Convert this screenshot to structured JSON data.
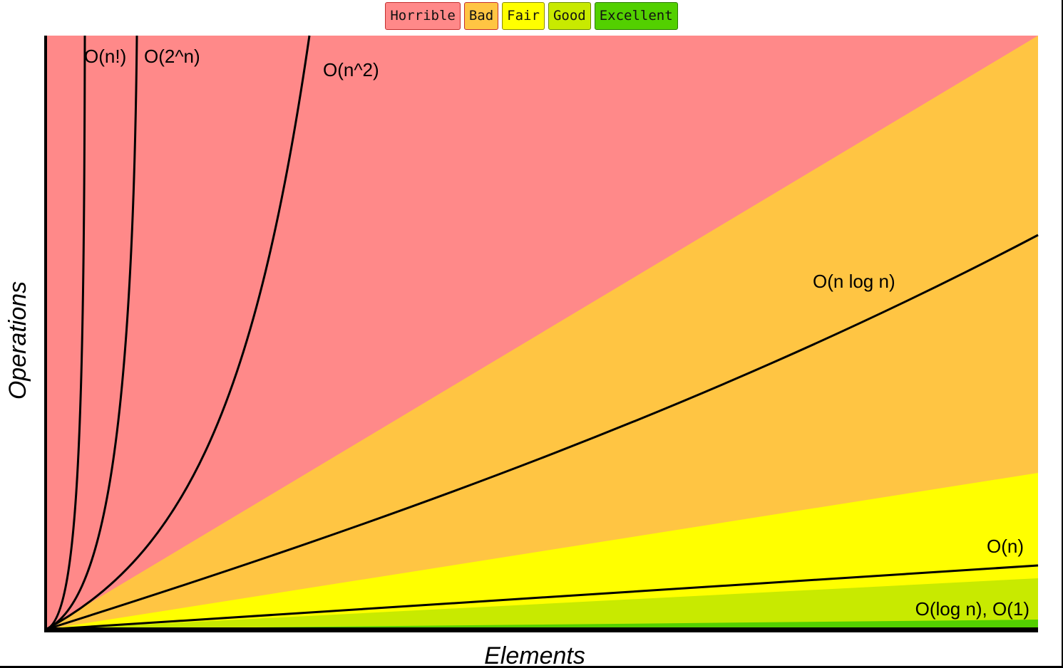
{
  "legend": {
    "items": [
      {
        "label": "Horrible",
        "color": "#ff8989",
        "border": "#c42e2e"
      },
      {
        "label": "Bad",
        "color": "#ffc543",
        "border": "#c42e2e"
      },
      {
        "label": "Fair",
        "color": "#ffff00",
        "border": "#8a8a00"
      },
      {
        "label": "Good",
        "color": "#c8ea00",
        "border": "#6a8a00"
      },
      {
        "label": "Excellent",
        "color": "#53d000",
        "border": "#2a7a00"
      }
    ]
  },
  "chart_data": {
    "type": "area",
    "xlabel": "Elements",
    "ylabel": "Operations",
    "grid": false,
    "legend_position": "top-center",
    "regions": [
      {
        "name": "Horrible",
        "color": "#ff8989"
      },
      {
        "name": "Bad",
        "color": "#ffc543"
      },
      {
        "name": "Fair",
        "color": "#ffff00"
      },
      {
        "name": "Good",
        "color": "#c8ea00"
      },
      {
        "name": "Excellent",
        "color": "#53d000"
      }
    ],
    "series": [
      {
        "name": "O(n!)",
        "function": "factorial"
      },
      {
        "name": "O(2^n)",
        "function": "exponential"
      },
      {
        "name": "O(n^2)",
        "function": "quadratic"
      },
      {
        "name": "O(n log n)",
        "function": "linearithmic"
      },
      {
        "name": "O(n)",
        "function": "linear"
      },
      {
        "name": "O(log n), O(1)",
        "function": "logarithmic-constant"
      }
    ]
  }
}
